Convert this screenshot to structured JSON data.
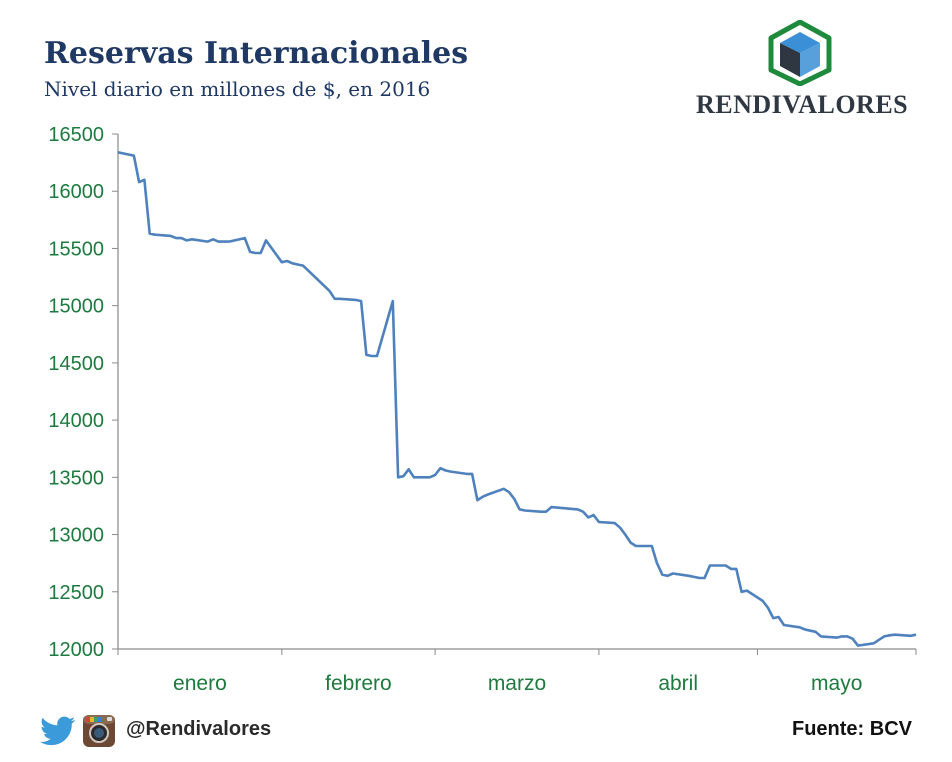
{
  "header": {
    "title": "Reservas Internacionales",
    "subtitle": "Nivel diario en millones de $, en 2016",
    "brand": "RENDIVALORES"
  },
  "footer": {
    "handle": "@Rendivalores",
    "source": "Fuente: BCV",
    "icons": [
      "twitter-icon",
      "instagram-icon"
    ]
  },
  "colors": {
    "title": "#1f3864",
    "line": "#4f81bd",
    "ticks": "#1e7a3e",
    "logo_green": "#1e8a3c",
    "logo_blue": "#3b8fd6",
    "logo_dark": "#2f3842"
  },
  "chart_data": {
    "type": "line",
    "title": "Reservas Internacionales",
    "subtitle": "Nivel diario en millones de $, en 2016",
    "xlabel": "",
    "ylabel": "",
    "ylim": [
      12000,
      16500
    ],
    "yticks": [
      "16500",
      "16000",
      "15500",
      "15000",
      "14500",
      "14000",
      "13500",
      "13000",
      "12500",
      "12000"
    ],
    "ytick_values": [
      16500,
      16000,
      15500,
      15000,
      14500,
      14000,
      13500,
      13000,
      12500,
      12000
    ],
    "categories": [
      "enero",
      "febrero",
      "marzo",
      "abril",
      "mayo"
    ],
    "xlim": [
      "2016-01-01",
      "2016-05-31"
    ],
    "category_starts": [
      "2016-01-01",
      "2016-02-01",
      "2016-03-01",
      "2016-04-01",
      "2016-05-01"
    ],
    "grid": false,
    "legend": "none",
    "series": [
      {
        "x": [
          "2016-01-01",
          "2016-01-04",
          "2016-01-05",
          "2016-01-06",
          "2016-01-07",
          "2016-01-08",
          "2016-01-11",
          "2016-01-12",
          "2016-01-13",
          "2016-01-14",
          "2016-01-15",
          "2016-01-18",
          "2016-01-19",
          "2016-01-20",
          "2016-01-21",
          "2016-01-22",
          "2016-01-25",
          "2016-01-26",
          "2016-01-27",
          "2016-01-28",
          "2016-01-29",
          "2016-02-01",
          "2016-02-02",
          "2016-02-03",
          "2016-02-04",
          "2016-02-05",
          "2016-02-10",
          "2016-02-11",
          "2016-02-12",
          "2016-02-15",
          "2016-02-16",
          "2016-02-17",
          "2016-02-18",
          "2016-02-19",
          "2016-02-22",
          "2016-02-23",
          "2016-02-24",
          "2016-02-25",
          "2016-02-26",
          "2016-02-29",
          "2016-03-01",
          "2016-03-02",
          "2016-03-03",
          "2016-03-04",
          "2016-03-07",
          "2016-03-08",
          "2016-03-09",
          "2016-03-10",
          "2016-03-11",
          "2016-03-14",
          "2016-03-15",
          "2016-03-16",
          "2016-03-17",
          "2016-03-18",
          "2016-03-21",
          "2016-03-22",
          "2016-03-23",
          "2016-03-28",
          "2016-03-29",
          "2016-03-30",
          "2016-03-31",
          "2016-04-01",
          "2016-04-04",
          "2016-04-05",
          "2016-04-06",
          "2016-04-07",
          "2016-04-08",
          "2016-04-11",
          "2016-04-12",
          "2016-04-13",
          "2016-04-14",
          "2016-04-15",
          "2016-04-18",
          "2016-04-19",
          "2016-04-20",
          "2016-04-21",
          "2016-04-22",
          "2016-04-25",
          "2016-04-26",
          "2016-04-27",
          "2016-04-28",
          "2016-04-29",
          "2016-05-02",
          "2016-05-03",
          "2016-05-04",
          "2016-05-05",
          "2016-05-06",
          "2016-05-09",
          "2016-05-10",
          "2016-05-11",
          "2016-05-12",
          "2016-05-13",
          "2016-05-16",
          "2016-05-17",
          "2016-05-18",
          "2016-05-19",
          "2016-05-20",
          "2016-05-23",
          "2016-05-24",
          "2016-05-25",
          "2016-05-26",
          "2016-05-27",
          "2016-05-30",
          "2016-05-31"
        ],
        "y": [
          16340,
          16310,
          16080,
          16100,
          15630,
          15620,
          15610,
          15590,
          15590,
          15570,
          15580,
          15560,
          15580,
          15560,
          15560,
          15560,
          15590,
          15470,
          15460,
          15460,
          15570,
          15380,
          15390,
          15370,
          15360,
          15350,
          15130,
          15060,
          15060,
          15050,
          15040,
          14570,
          14560,
          14560,
          15040,
          13500,
          13510,
          13570,
          13500,
          13500,
          13520,
          13580,
          13560,
          13550,
          13530,
          13530,
          13300,
          13330,
          13350,
          13400,
          13370,
          13310,
          13220,
          13210,
          13200,
          13200,
          13240,
          13220,
          13200,
          13150,
          13170,
          13110,
          13100,
          13060,
          13000,
          12930,
          12900,
          12900,
          12750,
          12650,
          12640,
          12660,
          12640,
          12630,
          12620,
          12620,
          12730,
          12730,
          12700,
          12700,
          12500,
          12510,
          12420,
          12360,
          12270,
          12280,
          12210,
          12190,
          12170,
          12160,
          12150,
          12110,
          12100,
          12110,
          12110,
          12090,
          12030,
          12050,
          12080,
          12110,
          12120,
          12125,
          12115,
          12125
        ]
      }
    ]
  }
}
